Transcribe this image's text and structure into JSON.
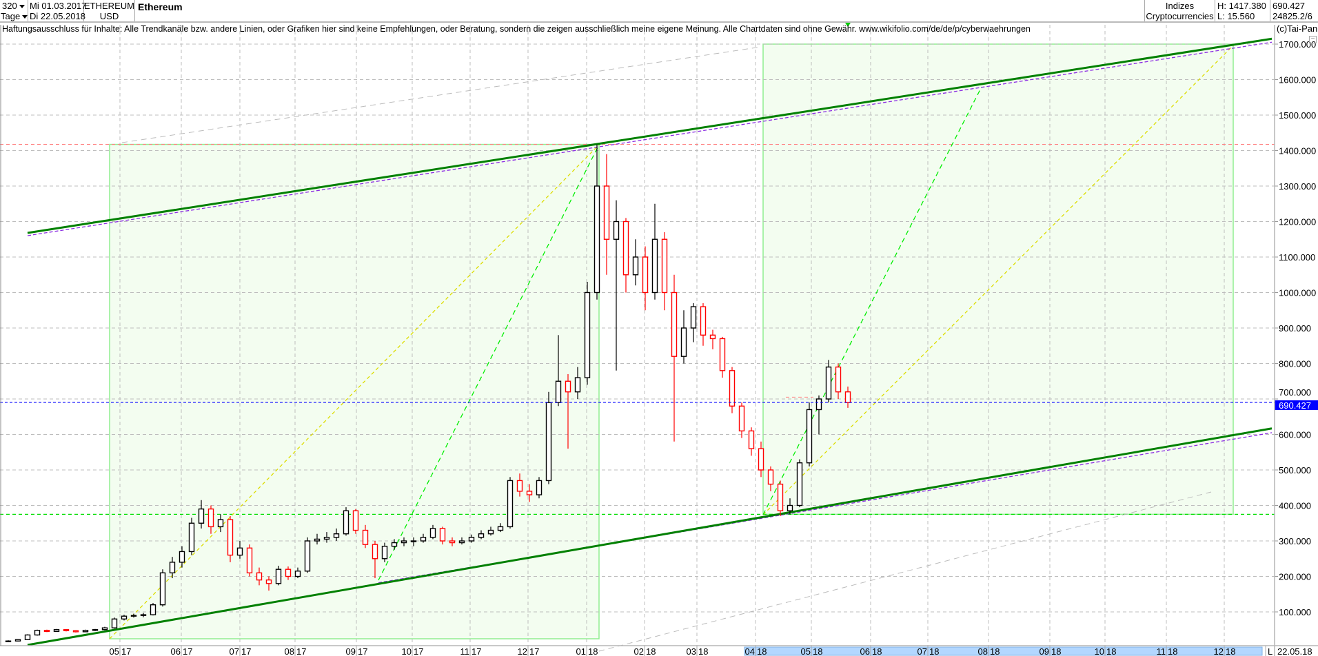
{
  "header": {
    "bar_count": "320",
    "period": "Tage",
    "date_from": "Mi 01.03.2017",
    "date_to": "Di 22.05.2018",
    "symbol": "ETHEREUM",
    "currency": "USD",
    "title": "Ethereum",
    "index_label": "Indizes",
    "index_group": "Cryptocurrencies",
    "high": "H: 1417.380",
    "low": "L: 15.560",
    "last": "690.427",
    "volume": "24825.2/6"
  },
  "disclaimer": "Haftungsausschluss für Inhalte: Alle Trendkanäle bzw. andere Linien, oder Grafiken hier sind keine Empfehlungen, oder Beratung, sondern die zeigen ausschließlich meine eigene Meinung. Alle Chartdaten sind ohne Gewähr.  www.wikifolio.com/de/de/p/cyberwaehrungen",
  "copyright": "(c)Tai-Pan",
  "minimize_label": "−",
  "axis": {
    "scale_mode": "L",
    "end_date": "22.05.18"
  },
  "colors": {
    "up_candle": "#000000",
    "down_candle": "#ff0000",
    "channel": "#008000",
    "box_fill": "#f3fdf0",
    "box_border": "#90ee90",
    "last_price": "#0000ff"
  },
  "chart_data": {
    "type": "candlestick",
    "title": "Ethereum",
    "ylim": [
      0,
      1750
    ],
    "yticks": [
      "100.000",
      "200.000",
      "300.000",
      "400.000",
      "500.000",
      "600.000",
      "700.000",
      "800.000",
      "900.000",
      "1000.000",
      "1100.000",
      "1200.000",
      "1300.000",
      "1400.000",
      "1500.000",
      "1600.000",
      "1700.000"
    ],
    "ytick_values": [
      100,
      200,
      300,
      400,
      500,
      600,
      700,
      800,
      900,
      1000,
      1100,
      1200,
      1300,
      1400,
      1500,
      1600,
      1700
    ],
    "xticks": [
      "05 17",
      "06 17",
      "07 17",
      "08 17",
      "09 17",
      "10 17",
      "11 17",
      "12 17",
      "01 18",
      "02 18",
      "03 18",
      "04 18",
      "05 18",
      "06 18",
      "07 18",
      "08 18",
      "09 18",
      "10 18",
      "11 18",
      "12 18"
    ],
    "last_price": 690.427,
    "last_price_label": "690.427",
    "high_line": 1417.38,
    "support_line": 375,
    "grid": true,
    "candles_ohlc": [
      [
        16,
        20,
        15,
        18
      ],
      [
        18,
        23,
        17,
        22
      ],
      [
        22,
        37,
        21,
        35
      ],
      [
        35,
        50,
        33,
        48
      ],
      [
        48,
        50,
        43,
        45
      ],
      [
        45,
        52,
        44,
        50
      ],
      [
        50,
        51,
        45,
        47
      ],
      [
        47,
        48,
        42,
        44
      ],
      [
        44,
        50,
        43,
        48
      ],
      [
        48,
        52,
        46,
        50
      ],
      [
        50,
        58,
        48,
        55
      ],
      [
        55,
        84,
        53,
        80
      ],
      [
        80,
        92,
        76,
        88
      ],
      [
        88,
        95,
        84,
        90
      ],
      [
        90,
        97,
        85,
        92
      ],
      [
        92,
        125,
        90,
        120
      ],
      [
        120,
        220,
        115,
        210
      ],
      [
        210,
        255,
        195,
        240
      ],
      [
        240,
        285,
        225,
        270
      ],
      [
        270,
        365,
        260,
        350
      ],
      [
        350,
        415,
        335,
        390
      ],
      [
        390,
        400,
        320,
        340
      ],
      [
        340,
        375,
        325,
        360
      ],
      [
        360,
        370,
        240,
        260
      ],
      [
        260,
        300,
        250,
        280
      ],
      [
        280,
        290,
        200,
        210
      ],
      [
        210,
        225,
        175,
        190
      ],
      [
        190,
        200,
        160,
        180
      ],
      [
        180,
        230,
        175,
        220
      ],
      [
        220,
        228,
        190,
        200
      ],
      [
        200,
        225,
        195,
        215
      ],
      [
        215,
        310,
        210,
        300
      ],
      [
        300,
        320,
        290,
        305
      ],
      [
        305,
        325,
        295,
        310
      ],
      [
        310,
        335,
        300,
        320
      ],
      [
        320,
        395,
        315,
        385
      ],
      [
        385,
        390,
        320,
        330
      ],
      [
        330,
        345,
        280,
        290
      ],
      [
        290,
        300,
        195,
        250
      ],
      [
        250,
        295,
        240,
        285
      ],
      [
        285,
        305,
        275,
        295
      ],
      [
        295,
        310,
        285,
        300
      ],
      [
        300,
        310,
        285,
        300
      ],
      [
        300,
        320,
        295,
        310
      ],
      [
        310,
        345,
        305,
        335
      ],
      [
        335,
        340,
        290,
        300
      ],
      [
        300,
        310,
        285,
        295
      ],
      [
        295,
        310,
        290,
        300
      ],
      [
        300,
        318,
        295,
        310
      ],
      [
        310,
        330,
        305,
        320
      ],
      [
        320,
        340,
        315,
        330
      ],
      [
        330,
        350,
        325,
        340
      ],
      [
        340,
        480,
        335,
        470
      ],
      [
        470,
        490,
        425,
        440
      ],
      [
        440,
        460,
        410,
        430
      ],
      [
        430,
        480,
        420,
        470
      ],
      [
        470,
        720,
        460,
        690
      ],
      [
        690,
        880,
        680,
        750
      ],
      [
        750,
        770,
        560,
        720
      ],
      [
        720,
        790,
        700,
        760
      ],
      [
        760,
        1030,
        740,
        1000
      ],
      [
        1000,
        1417,
        980,
        1300
      ],
      [
        1300,
        1390,
        1050,
        1150
      ],
      [
        1150,
        1260,
        780,
        1200
      ],
      [
        1200,
        1210,
        1000,
        1050
      ],
      [
        1050,
        1150,
        1020,
        1100
      ],
      [
        1100,
        1130,
        950,
        1000
      ],
      [
        1000,
        1250,
        980,
        1150
      ],
      [
        1150,
        1170,
        950,
        1000
      ],
      [
        1000,
        1050,
        580,
        820
      ],
      [
        820,
        950,
        800,
        900
      ],
      [
        900,
        970,
        860,
        960
      ],
      [
        960,
        970,
        850,
        880
      ],
      [
        880,
        895,
        840,
        870
      ],
      [
        870,
        875,
        760,
        780
      ],
      [
        780,
        790,
        660,
        680
      ],
      [
        680,
        690,
        590,
        610
      ],
      [
        610,
        620,
        540,
        560
      ],
      [
        560,
        580,
        480,
        500
      ],
      [
        500,
        510,
        440,
        460
      ],
      [
        460,
        470,
        370,
        385
      ],
      [
        385,
        420,
        375,
        400
      ],
      [
        400,
        530,
        395,
        520
      ],
      [
        520,
        690,
        510,
        670
      ],
      [
        670,
        710,
        600,
        700
      ],
      [
        700,
        810,
        690,
        790
      ],
      [
        790,
        800,
        700,
        720
      ],
      [
        720,
        735,
        675,
        690
      ]
    ]
  }
}
